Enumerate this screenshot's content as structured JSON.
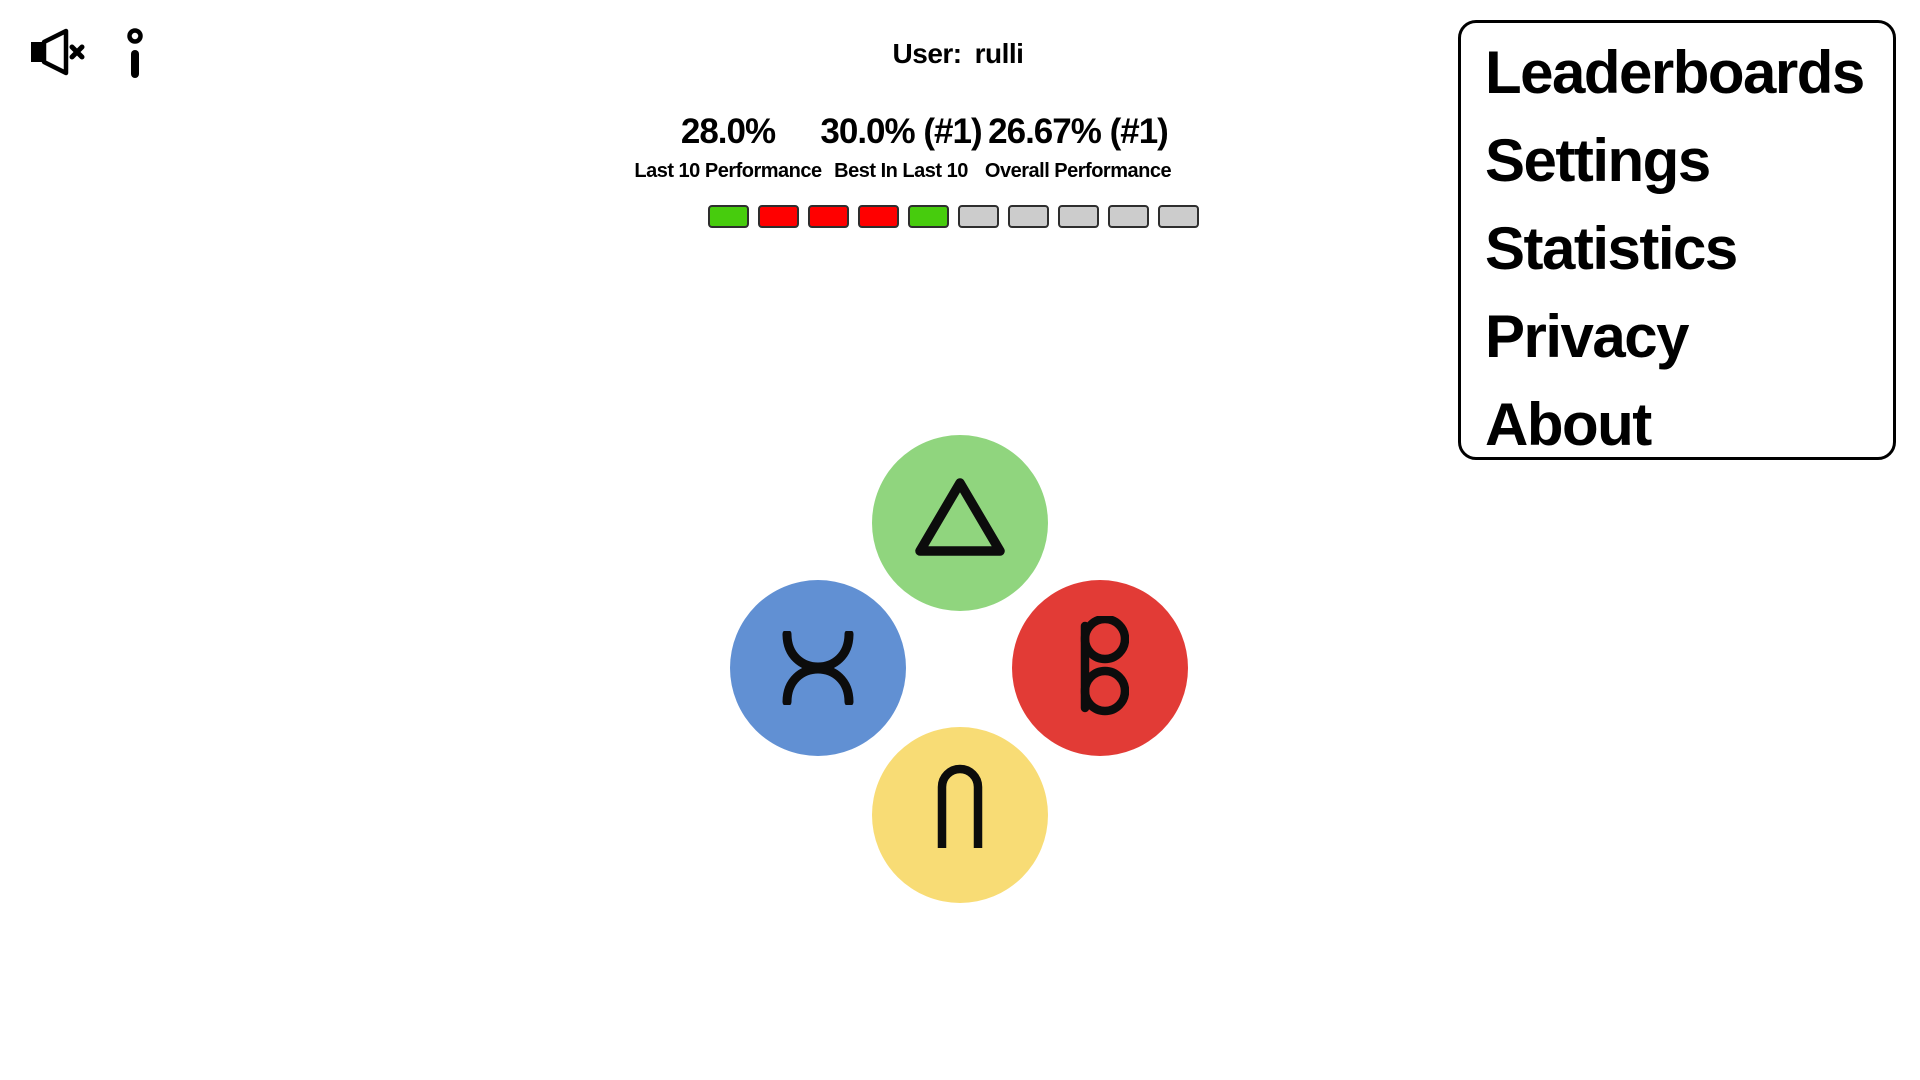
{
  "header": {
    "user_label": "User:",
    "username": "rulli"
  },
  "stats": {
    "columns": [
      {
        "value": "28.0%",
        "label": "Last 10 Performance"
      },
      {
        "value": "30.0% (#1)",
        "label": "Best In Last 10"
      },
      {
        "value": "26.67% (#1)",
        "label": "Overall Performance"
      }
    ]
  },
  "history": {
    "cells": [
      "win",
      "loss",
      "loss",
      "loss",
      "win",
      "empty",
      "empty",
      "empty",
      "empty",
      "empty"
    ],
    "colors": {
      "win": "#47cc0d",
      "loss": "#ff0000",
      "empty": "#cccccc"
    }
  },
  "menu": {
    "items": [
      "Leaderboards",
      "Settings",
      "Statistics",
      "Privacy",
      "About"
    ]
  },
  "game": {
    "buttons": [
      {
        "symbol": "triangle",
        "color": "#90d57e"
      },
      {
        "symbol": "curved-x",
        "color": "#6190d3"
      },
      {
        "symbol": "double-circle",
        "color": "#e23b36"
      },
      {
        "symbol": "arch",
        "color": "#f8dc75"
      }
    ]
  },
  "icons": {
    "mute": "muted-speaker-icon",
    "info": "info-icon"
  }
}
